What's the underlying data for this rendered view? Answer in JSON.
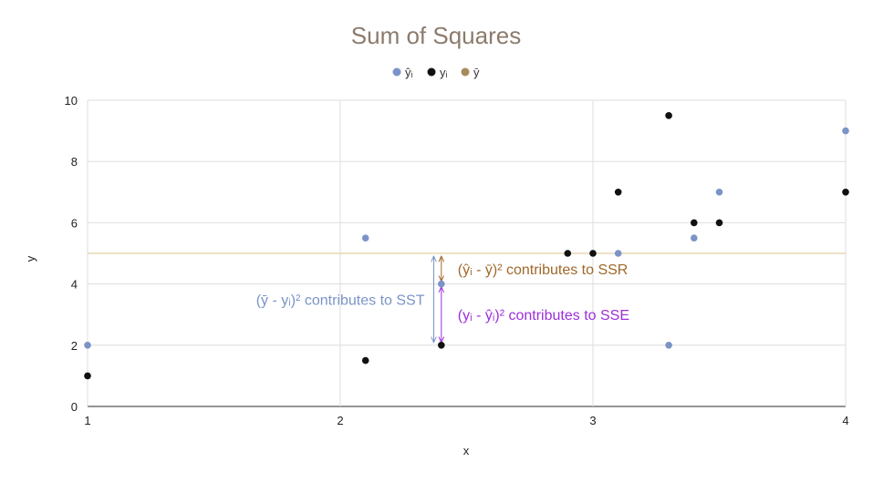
{
  "chart_data": {
    "type": "scatter",
    "title": "Sum of Squares",
    "xlabel": "x",
    "ylabel": "y",
    "xlim": [
      1,
      4
    ],
    "ylim": [
      0,
      10
    ],
    "x_ticks": [
      1,
      2,
      3,
      4
    ],
    "y_ticks": [
      0,
      2,
      4,
      6,
      8,
      10
    ],
    "grid": true,
    "legend_position": "top-center",
    "series": [
      {
        "name": "ŷᵢ",
        "color": "#7b94c7",
        "points": [
          {
            "x": 1,
            "y": 2
          },
          {
            "x": 2.1,
            "y": 5.5
          },
          {
            "x": 2.4,
            "y": 4
          },
          {
            "x": 3.1,
            "y": 5
          },
          {
            "x": 3.3,
            "y": 2
          },
          {
            "x": 3.4,
            "y": 5.5
          },
          {
            "x": 3.5,
            "y": 7
          },
          {
            "x": 4,
            "y": 9
          }
        ]
      },
      {
        "name": "yᵢ",
        "color": "#111111",
        "points": [
          {
            "x": 1,
            "y": 1
          },
          {
            "x": 2.1,
            "y": 1.5
          },
          {
            "x": 2.4,
            "y": 2
          },
          {
            "x": 2.9,
            "y": 5
          },
          {
            "x": 3,
            "y": 5
          },
          {
            "x": 3.1,
            "y": 7
          },
          {
            "x": 3.3,
            "y": 9.5
          },
          {
            "x": 3.4,
            "y": 6
          },
          {
            "x": 3.5,
            "y": 6
          },
          {
            "x": 4,
            "y": 7
          }
        ]
      },
      {
        "name": "ȳ",
        "color": "#a98a5e",
        "line_y": 5
      }
    ],
    "annotations": [
      {
        "text": "(ȳ - yᵢ)² contributes to SST",
        "color": "#7b94c7",
        "x": 2.37,
        "y_from": 2,
        "y_to": 5
      },
      {
        "text": "(ŷᵢ - ȳ)² contributes to SSR",
        "color": "#a0682a",
        "x": 2.4,
        "y_from": 4,
        "y_to": 5
      },
      {
        "text": "(yᵢ - ŷᵢ)² contributes to SSE",
        "color": "#9b30d9",
        "x": 2.4,
        "y_from": 2,
        "y_to": 4
      }
    ]
  }
}
